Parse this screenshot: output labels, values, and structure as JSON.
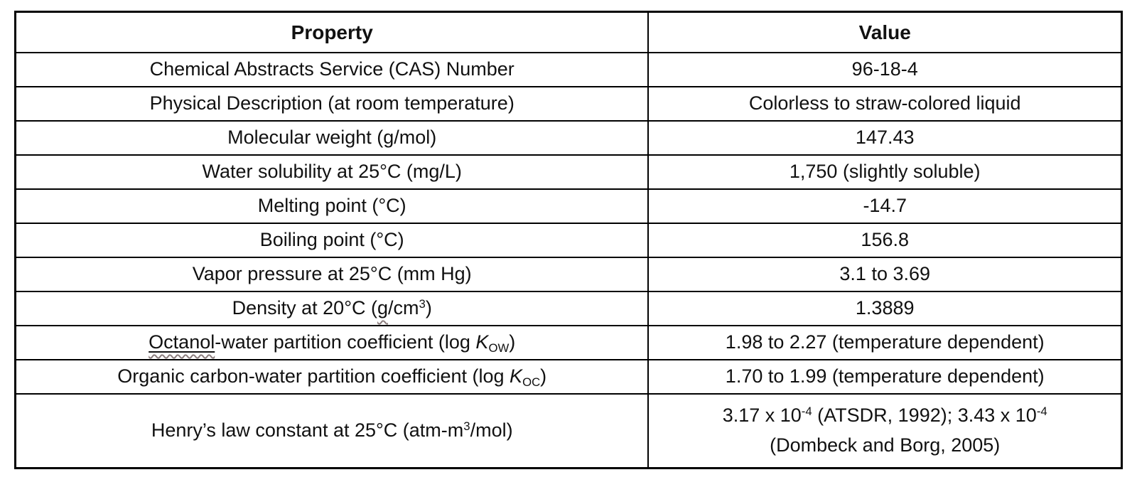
{
  "colors": {
    "border": "#000000",
    "text": "#111111",
    "spellcheck_squiggle": "#8b7d7d",
    "background": "#ffffff"
  },
  "table": {
    "header": {
      "property": "Property",
      "value": "Value"
    },
    "rows": [
      {
        "property": [
          {
            "t": "Chemical Abstracts Service (CAS) Number"
          }
        ],
        "value": [
          {
            "t": "96-18-4"
          }
        ]
      },
      {
        "property": [
          {
            "t": "Physical Description (at room temperature)"
          }
        ],
        "value": [
          {
            "t": "Colorless to straw-colored liquid"
          }
        ]
      },
      {
        "property": [
          {
            "t": "Molecular weight (g/mol)"
          }
        ],
        "value": [
          {
            "t": "147.43"
          }
        ]
      },
      {
        "property": [
          {
            "t": "Water solubility at 25°C (mg/L)"
          }
        ],
        "value": [
          {
            "t": "1,750 (slightly soluble)"
          }
        ]
      },
      {
        "property": [
          {
            "t": "Melting point (°C)"
          }
        ],
        "value": [
          {
            "t": "-14.7"
          }
        ]
      },
      {
        "property": [
          {
            "t": "Boiling point (°C)"
          }
        ],
        "value": [
          {
            "t": "156.8"
          }
        ]
      },
      {
        "property": [
          {
            "t": "Vapor pressure at 25°C (mm Hg)"
          }
        ],
        "value": [
          {
            "t": "3.1 to 3.69"
          }
        ]
      },
      {
        "property": [
          {
            "t": "Density at 20°C ("
          },
          {
            "t": "g",
            "wavy": true
          },
          {
            "t": "/cm"
          },
          {
            "t": "3",
            "sup": true
          },
          {
            "t": ")"
          }
        ],
        "value": [
          {
            "t": "1.3889"
          }
        ]
      },
      {
        "property": [
          {
            "t": "Octanol",
            "ul": true,
            "wavy": true
          },
          {
            "t": "-water partition coefficient (log "
          },
          {
            "t": "K",
            "italic": true
          },
          {
            "t": "OW",
            "sub": true
          },
          {
            "t": ")"
          }
        ],
        "value": [
          {
            "t": "1.98 to 2.27 (temperature dependent)"
          }
        ]
      },
      {
        "property": [
          {
            "t": "Organic carbon-water partition coefficient (log "
          },
          {
            "t": "K",
            "italic": true
          },
          {
            "t": "OC",
            "sub": true
          },
          {
            "t": ")"
          }
        ],
        "value": [
          {
            "t": "1.70 to 1.99 (temperature dependent)"
          }
        ]
      },
      {
        "property": [
          {
            "t": "Henry’s law constant at 25°C (atm-m"
          },
          {
            "t": "3",
            "sup": true
          },
          {
            "t": "/mol)"
          }
        ],
        "value": [
          {
            "t": "3.17 x 10"
          },
          {
            "t": "-4",
            "sup": true
          },
          {
            "t": " (ATSDR, 1992); 3.43 x 10"
          },
          {
            "t": "-4",
            "sup": true
          },
          {
            "br": true
          },
          {
            "t": "(Dombeck and Borg, 2005)"
          }
        ]
      }
    ]
  }
}
